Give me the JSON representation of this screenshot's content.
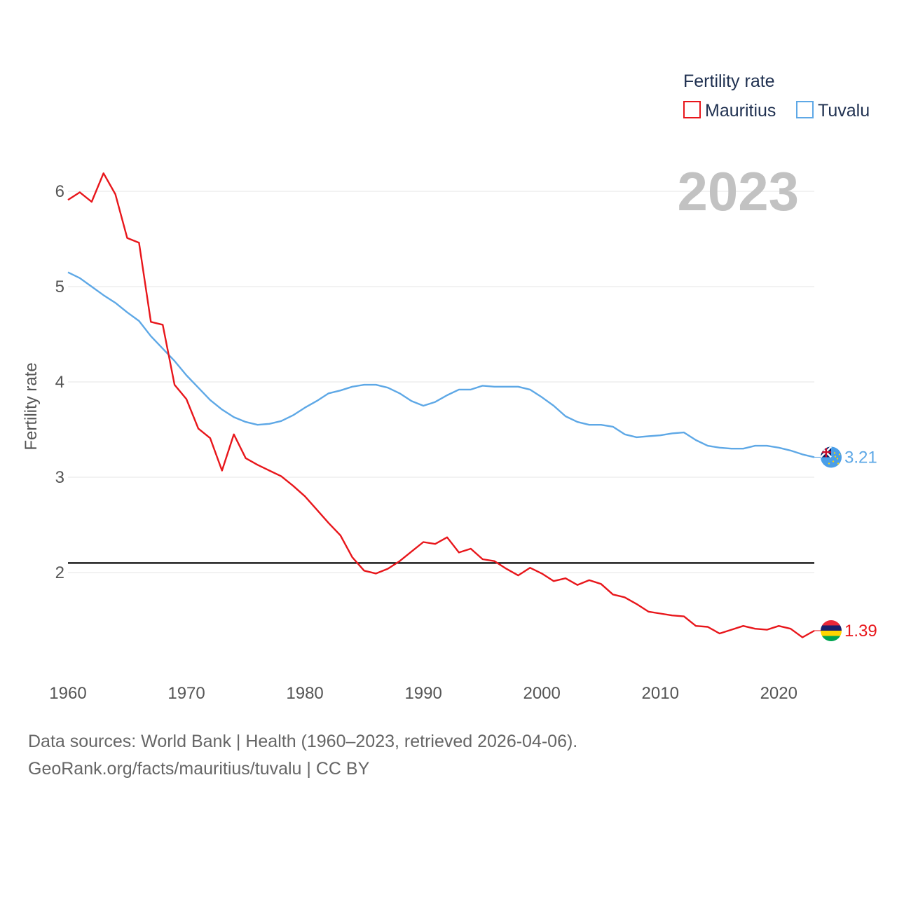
{
  "chart_data": {
    "type": "line",
    "ylabel": "Fertility rate",
    "xlabel": "",
    "xlim": [
      1960,
      2023
    ],
    "ylim": [
      1.1,
      6.5
    ],
    "x_ticks": [
      1960,
      1970,
      1980,
      1990,
      2000,
      2010,
      2020
    ],
    "y_ticks": [
      2,
      3,
      4,
      5,
      6
    ],
    "reference_line": 2.1,
    "year_label": "2023",
    "legend": {
      "title": "Fertility rate",
      "position": "top-right"
    },
    "x": [
      1960,
      1961,
      1962,
      1963,
      1964,
      1965,
      1966,
      1967,
      1968,
      1969,
      1970,
      1971,
      1972,
      1973,
      1974,
      1975,
      1976,
      1977,
      1978,
      1979,
      1980,
      1981,
      1982,
      1983,
      1984,
      1985,
      1986,
      1987,
      1988,
      1989,
      1990,
      1991,
      1992,
      1993,
      1994,
      1995,
      1996,
      1997,
      1998,
      1999,
      2000,
      2001,
      2002,
      2003,
      2004,
      2005,
      2006,
      2007,
      2008,
      2009,
      2010,
      2011,
      2012,
      2013,
      2014,
      2015,
      2016,
      2017,
      2018,
      2019,
      2020,
      2021,
      2022,
      2023
    ],
    "series": [
      {
        "name": "Mauritius",
        "color": "#e8161b",
        "end_label": "1.39",
        "values": [
          5.91,
          5.99,
          5.89,
          6.19,
          5.97,
          5.51,
          5.46,
          4.63,
          4.6,
          3.97,
          3.82,
          3.51,
          3.41,
          3.07,
          3.45,
          3.2,
          3.13,
          3.07,
          3.01,
          2.91,
          2.8,
          2.66,
          2.52,
          2.39,
          2.16,
          2.02,
          1.99,
          2.04,
          2.12,
          2.22,
          2.32,
          2.3,
          2.37,
          2.21,
          2.25,
          2.14,
          2.12,
          2.04,
          1.97,
          2.05,
          1.99,
          1.91,
          1.94,
          1.87,
          1.92,
          1.88,
          1.77,
          1.74,
          1.67,
          1.59,
          1.57,
          1.55,
          1.54,
          1.44,
          1.43,
          1.36,
          1.4,
          1.44,
          1.41,
          1.4,
          1.44,
          1.41,
          1.32,
          1.39
        ]
      },
      {
        "name": "Tuvalu",
        "color": "#5ea8e6",
        "end_label": "3.21",
        "values": [
          5.15,
          5.09,
          5.0,
          4.91,
          4.83,
          4.73,
          4.64,
          4.48,
          4.35,
          4.22,
          4.07,
          3.94,
          3.81,
          3.71,
          3.63,
          3.58,
          3.55,
          3.56,
          3.59,
          3.65,
          3.73,
          3.8,
          3.88,
          3.91,
          3.95,
          3.97,
          3.97,
          3.94,
          3.88,
          3.8,
          3.75,
          3.79,
          3.86,
          3.92,
          3.92,
          3.96,
          3.95,
          3.95,
          3.95,
          3.92,
          3.84,
          3.75,
          3.64,
          3.58,
          3.55,
          3.55,
          3.53,
          3.45,
          3.42,
          3.43,
          3.44,
          3.46,
          3.47,
          3.39,
          3.33,
          3.31,
          3.3,
          3.3,
          3.33,
          3.33,
          3.31,
          3.28,
          3.24,
          3.21
        ]
      }
    ]
  },
  "footer": {
    "line1": "Data sources: World Bank | Health (1960–2023, retrieved 2026-04-06).",
    "line2": "GeoRank.org/facts/mauritius/tuvalu | CC BY"
  }
}
